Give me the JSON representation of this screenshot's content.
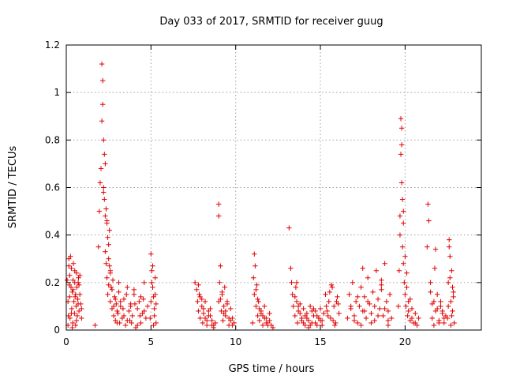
{
  "chart_data": {
    "type": "scatter",
    "title": "Day 033 of 2017, SRMTID for receiver guug",
    "xlabel": "GPS time / hours",
    "ylabel": "SRMTID / TECUs",
    "xlim": [
      0,
      24.5
    ],
    "ylim": [
      0,
      1.2
    ],
    "xticks": [
      0,
      5,
      10,
      15,
      20
    ],
    "yticks": [
      0,
      0.2,
      0.4,
      0.6,
      0.8,
      1,
      1.2
    ],
    "ytick_labels": [
      "0",
      "0.2",
      "0.4",
      "0.6",
      "0.8",
      "1",
      "1.2"
    ],
    "grid": true,
    "marker": "+",
    "color": "#e00000",
    "series": [
      {
        "name": "SRMTID",
        "x": [
          0.05,
          0.1,
          0.12,
          0.15,
          0.18,
          0.2,
          0.22,
          0.25,
          0.28,
          0.3,
          0.32,
          0.35,
          0.38,
          0.4,
          0.42,
          0.45,
          0.48,
          0.5,
          0.52,
          0.55,
          0.58,
          0.6,
          0.62,
          0.65,
          0.68,
          0.7,
          0.72,
          0.75,
          0.8,
          0.85,
          0.9,
          0.1,
          0.2,
          0.3,
          0.4,
          0.5,
          0.6,
          0.7,
          0.8,
          0.9,
          0.15,
          0.35,
          0.55,
          0.75,
          1.7,
          1.9,
          1.95,
          2.0,
          2.05,
          2.1,
          2.1,
          2.15,
          2.15,
          2.2,
          2.2,
          2.25,
          2.25,
          2.3,
          2.3,
          2.35,
          2.35,
          2.4,
          2.4,
          2.45,
          2.45,
          2.5,
          2.5,
          2.55,
          2.55,
          2.6,
          2.6,
          2.65,
          2.7,
          2.75,
          2.8,
          2.85,
          2.9,
          2.95,
          3.0,
          2.2,
          2.3,
          2.4,
          2.5,
          2.6,
          2.7,
          2.8,
          2.9,
          3.0,
          3.05,
          3.1,
          3.15,
          3.2,
          3.3,
          3.4,
          3.5,
          3.6,
          3.7,
          3.75,
          3.8,
          3.9,
          4.0,
          4.1,
          4.2,
          4.3,
          4.4,
          4.5,
          4.6,
          4.7,
          4.8,
          3.2,
          3.4,
          3.6,
          3.8,
          4.0,
          4.2,
          4.4,
          4.6,
          3.1,
          3.35,
          3.55,
          3.85,
          4.05,
          4.35,
          4.55,
          4.95,
          5.0,
          5.05,
          5.1,
          5.15,
          5.2,
          5.25,
          5.3,
          5.0,
          5.1,
          5.2,
          5.3,
          5.05,
          5.15,
          5.25,
          7.6,
          7.7,
          7.75,
          7.8,
          7.85,
          7.9,
          8.0,
          8.05,
          8.1,
          8.2,
          8.3,
          8.4,
          8.5,
          8.6,
          8.7,
          8.8,
          7.8,
          8.0,
          8.2,
          8.4,
          8.6,
          7.9,
          8.1,
          8.3,
          8.5,
          8.7,
          9.0,
          9.0,
          9.0,
          9.05,
          9.1,
          9.15,
          9.2,
          9.25,
          9.3,
          9.35,
          9.4,
          9.5,
          9.6,
          9.7,
          9.8,
          9.9,
          9.1,
          9.3,
          9.5,
          9.7,
          9.2,
          9.4,
          9.6,
          9.8,
          11.0,
          11.05,
          11.1,
          11.1,
          11.15,
          11.2,
          11.25,
          11.3,
          11.35,
          11.4,
          11.5,
          11.6,
          11.7,
          11.8,
          11.9,
          12.0,
          12.1,
          12.2,
          11.2,
          11.4,
          11.6,
          11.8,
          12.0,
          11.3,
          11.5,
          11.7,
          11.9,
          13.15,
          13.25,
          13.3,
          13.35,
          13.4,
          13.5,
          13.55,
          13.6,
          13.65,
          13.7,
          13.8,
          13.9,
          14.0,
          14.1,
          14.2,
          14.3,
          14.4,
          14.5,
          14.6,
          14.7,
          14.8,
          14.9,
          15.0,
          15.1,
          15.2,
          13.5,
          13.7,
          13.9,
          14.1,
          14.3,
          14.5,
          14.7,
          14.9,
          15.1,
          13.6,
          13.8,
          14.0,
          14.2,
          14.4,
          14.6,
          14.8,
          15.0,
          15.3,
          15.4,
          15.5,
          15.6,
          15.7,
          15.8,
          15.9,
          16.0,
          16.1,
          15.35,
          15.55,
          15.75,
          15.95,
          15.45,
          15.65,
          15.85,
          16.05,
          16.6,
          16.7,
          16.8,
          16.9,
          17.0,
          17.1,
          17.2,
          17.3,
          17.4,
          17.5,
          17.6,
          17.7,
          17.8,
          17.9,
          18.0,
          18.1,
          18.2,
          18.3,
          18.4,
          18.5,
          18.6,
          18.7,
          18.8,
          18.9,
          19.0,
          19.1,
          19.2,
          16.8,
          17.0,
          17.2,
          17.4,
          17.6,
          17.8,
          18.0,
          18.2,
          18.4,
          18.6,
          18.8,
          19.0,
          17.5,
          18.6,
          19.0,
          19.6,
          19.65,
          19.7,
          19.7,
          19.75,
          19.75,
          19.8,
          19.8,
          19.85,
          19.85,
          19.9,
          19.9,
          19.95,
          20.0,
          20.05,
          20.1,
          20.15,
          20.2,
          20.3,
          20.4,
          20.5,
          20.6,
          20.7,
          20.8,
          19.8,
          19.9,
          20.0,
          20.1,
          20.2,
          20.3,
          20.4,
          20.6,
          21.3,
          21.35,
          21.4,
          21.5,
          21.6,
          21.7,
          21.75,
          21.8,
          21.9,
          22.0,
          22.1,
          22.2,
          22.3,
          22.4,
          21.5,
          21.7,
          21.9,
          22.1,
          22.3,
          21.6,
          21.8,
          22.0,
          22.2,
          22.5,
          22.55,
          22.6,
          22.65,
          22.7,
          22.75,
          22.8,
          22.85,
          22.9,
          22.55,
          22.65,
          22.75,
          22.85,
          22.6,
          22.7,
          22.8
        ],
        "y": [
          0.21,
          0.12,
          0.06,
          0.3,
          0.19,
          0.23,
          0.05,
          0.31,
          0.18,
          0.26,
          0.09,
          0.16,
          0.03,
          0.21,
          0.28,
          0.12,
          0.07,
          0.2,
          0.14,
          0.02,
          0.1,
          0.24,
          0.18,
          0.06,
          0.13,
          0.2,
          0.22,
          0.08,
          0.15,
          0.11,
          0.05,
          0.02,
          0.14,
          0.07,
          0.17,
          0.25,
          0.04,
          0.11,
          0.23,
          0.09,
          0.27,
          0.01,
          0.15,
          0.19,
          0.02,
          0.35,
          0.5,
          0.62,
          0.68,
          0.88,
          1.12,
          0.95,
          1.05,
          0.6,
          0.8,
          0.55,
          0.74,
          0.33,
          0.48,
          0.51,
          0.28,
          0.46,
          0.22,
          0.39,
          0.15,
          0.3,
          0.19,
          0.42,
          0.27,
          0.24,
          0.12,
          0.18,
          0.09,
          0.21,
          0.06,
          0.14,
          0.04,
          0.11,
          0.08,
          0.58,
          0.7,
          0.45,
          0.36,
          0.25,
          0.17,
          0.1,
          0.13,
          0.03,
          0.07,
          0.16,
          0.03,
          0.1,
          0.05,
          0.13,
          0.02,
          0.18,
          0.08,
          0.04,
          0.11,
          0.06,
          0.15,
          0.01,
          0.09,
          0.12,
          0.03,
          0.07,
          0.2,
          0.05,
          0.1,
          0.12,
          0.06,
          0.04,
          0.1,
          0.17,
          0.02,
          0.14,
          0.08,
          0.2,
          0.09,
          0.15,
          0.03,
          0.11,
          0.06,
          0.13,
          0.05,
          0.32,
          0.2,
          0.27,
          0.14,
          0.09,
          0.22,
          0.03,
          0.12,
          0.18,
          0.06,
          0.11,
          0.25,
          0.02,
          0.15,
          0.2,
          0.17,
          0.12,
          0.08,
          0.15,
          0.05,
          0.1,
          0.03,
          0.07,
          0.12,
          0.02,
          0.06,
          0.09,
          0.04,
          0.01,
          0.03,
          0.19,
          0.13,
          0.05,
          0.08,
          0.02,
          0.14,
          0.09,
          0.04,
          0.06,
          0.02,
          0.53,
          0.48,
          0.12,
          0.2,
          0.27,
          0.08,
          0.15,
          0.04,
          0.1,
          0.18,
          0.06,
          0.12,
          0.02,
          0.09,
          0.05,
          0.03,
          0.13,
          0.07,
          0.11,
          0.04,
          0.16,
          0.08,
          0.05,
          0.02,
          0.03,
          0.22,
          0.32,
          0.15,
          0.27,
          0.1,
          0.19,
          0.06,
          0.12,
          0.04,
          0.08,
          0.02,
          0.1,
          0.05,
          0.03,
          0.07,
          0.02,
          0.01,
          0.17,
          0.09,
          0.06,
          0.03,
          0.04,
          0.13,
          0.07,
          0.05,
          0.02,
          0.43,
          0.26,
          0.2,
          0.15,
          0.1,
          0.06,
          0.18,
          0.12,
          0.03,
          0.08,
          0.11,
          0.05,
          0.09,
          0.02,
          0.07,
          0.04,
          0.1,
          0.03,
          0.06,
          0.08,
          0.02,
          0.05,
          0.09,
          0.04,
          0.07,
          0.14,
          0.1,
          0.04,
          0.06,
          0.01,
          0.08,
          0.03,
          0.05,
          0.02,
          0.2,
          0.07,
          0.03,
          0.05,
          0.02,
          0.09,
          0.06,
          0.04,
          0.15,
          0.08,
          0.12,
          0.05,
          0.18,
          0.1,
          0.03,
          0.14,
          0.07,
          0.1,
          0.16,
          0.04,
          0.12,
          0.06,
          0.19,
          0.02,
          0.11,
          0.05,
          0.15,
          0.09,
          0.2,
          0.06,
          0.12,
          0.03,
          0.1,
          0.18,
          0.08,
          0.14,
          0.05,
          0.22,
          0.11,
          0.07,
          0.16,
          0.04,
          0.25,
          0.13,
          0.09,
          0.19,
          0.06,
          0.28,
          0.12,
          0.08,
          0.15,
          0.05,
          0.1,
          0.04,
          0.14,
          0.02,
          0.08,
          0.12,
          0.03,
          0.1,
          0.06,
          0.17,
          0.09,
          0.04,
          0.26,
          0.21,
          0.02,
          0.1,
          0.25,
          0.4,
          0.48,
          0.74,
          0.89,
          0.78,
          0.85,
          0.55,
          0.35,
          0.28,
          0.45,
          0.2,
          0.15,
          0.1,
          0.24,
          0.06,
          0.12,
          0.04,
          0.09,
          0.03,
          0.07,
          0.02,
          0.05,
          0.62,
          0.5,
          0.31,
          0.18,
          0.08,
          0.13,
          0.05,
          0.03,
          0.35,
          0.53,
          0.46,
          0.2,
          0.05,
          0.12,
          0.26,
          0.08,
          0.15,
          0.04,
          0.1,
          0.07,
          0.03,
          0.06,
          0.16,
          0.02,
          0.09,
          0.12,
          0.05,
          0.11,
          0.34,
          0.03,
          0.08,
          0.05,
          0.2,
          0.38,
          0.31,
          0.12,
          0.25,
          0.08,
          0.16,
          0.03,
          0.1,
          0.22,
          0.06,
          0.14,
          0.35,
          0.02,
          0.18
        ]
      }
    ]
  }
}
